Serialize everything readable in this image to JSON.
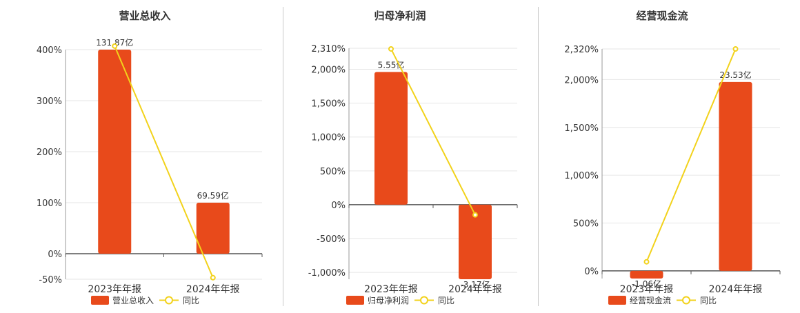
{
  "legend_series_label_line": "同比",
  "colors": {
    "bar": "#E84A1B",
    "line": "#F2D21B",
    "grid": "#e6e6e6",
    "axis": "#555555",
    "text": "#333333"
  },
  "chart_data": [
    {
      "type": "bar",
      "title": "营业总收入",
      "categories": [
        "2023年年报",
        "2024年年报"
      ],
      "series": [
        {
          "name": "营业总收入",
          "type": "bar",
          "values": [
            400,
            100
          ],
          "labels": [
            "131.87亿",
            "69.59亿"
          ]
        },
        {
          "name": "同比",
          "type": "line",
          "values": [
            407,
            -47
          ]
        }
      ],
      "ylim": [
        -50,
        400
      ],
      "yticks": [
        -50,
        0,
        100,
        200,
        300,
        400
      ],
      "ytick_labels": [
        "-50%",
        "0%",
        "100%",
        "200%",
        "300%",
        "400%"
      ]
    },
    {
      "type": "bar",
      "title": "归母净利润",
      "categories": [
        "2023年年报",
        "2024年年报"
      ],
      "series": [
        {
          "name": "归母净利润",
          "type": "bar",
          "values": [
            1960,
            -1100
          ],
          "labels": [
            "5.55亿",
            "-3.17亿"
          ]
        },
        {
          "name": "同比",
          "type": "line",
          "values": [
            2300,
            -150
          ]
        }
      ],
      "ylim": [
        -1100,
        2310
      ],
      "yticks": [
        -1000,
        -500,
        0,
        500,
        1000,
        1500,
        2000,
        2310
      ],
      "ytick_labels": [
        "-1,000%",
        "-500%",
        "0%",
        "500%",
        "1,000%",
        "1,500%",
        "2,000%",
        "2,310%"
      ]
    },
    {
      "type": "bar",
      "title": "经营现金流",
      "categories": [
        "2023年年报",
        "2024年年报"
      ],
      "series": [
        {
          "name": "经营现金流",
          "type": "bar",
          "values": [
            -80,
            1975
          ],
          "labels": [
            "-1.06亿",
            "23.53亿"
          ]
        },
        {
          "name": "同比",
          "type": "line",
          "values": [
            95,
            2320
          ]
        }
      ],
      "ylim": [
        -80,
        2320
      ],
      "yticks": [
        0,
        500,
        1000,
        1500,
        2000,
        2320
      ],
      "ytick_labels": [
        "0%",
        "500%",
        "1,000%",
        "1,500%",
        "2,000%",
        "2,320%"
      ]
    }
  ]
}
